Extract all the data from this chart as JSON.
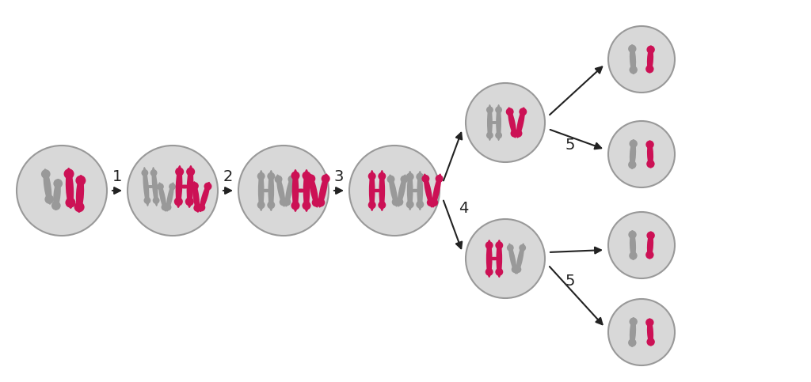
{
  "bg_color": "#ffffff",
  "cell_fill": "#d8d8d8",
  "cell_edge": "#999999",
  "gray": "#999999",
  "red": "#cc1155",
  "arrow_c": "#222222",
  "figw": 10.24,
  "figh": 4.83,
  "dpi": 100
}
